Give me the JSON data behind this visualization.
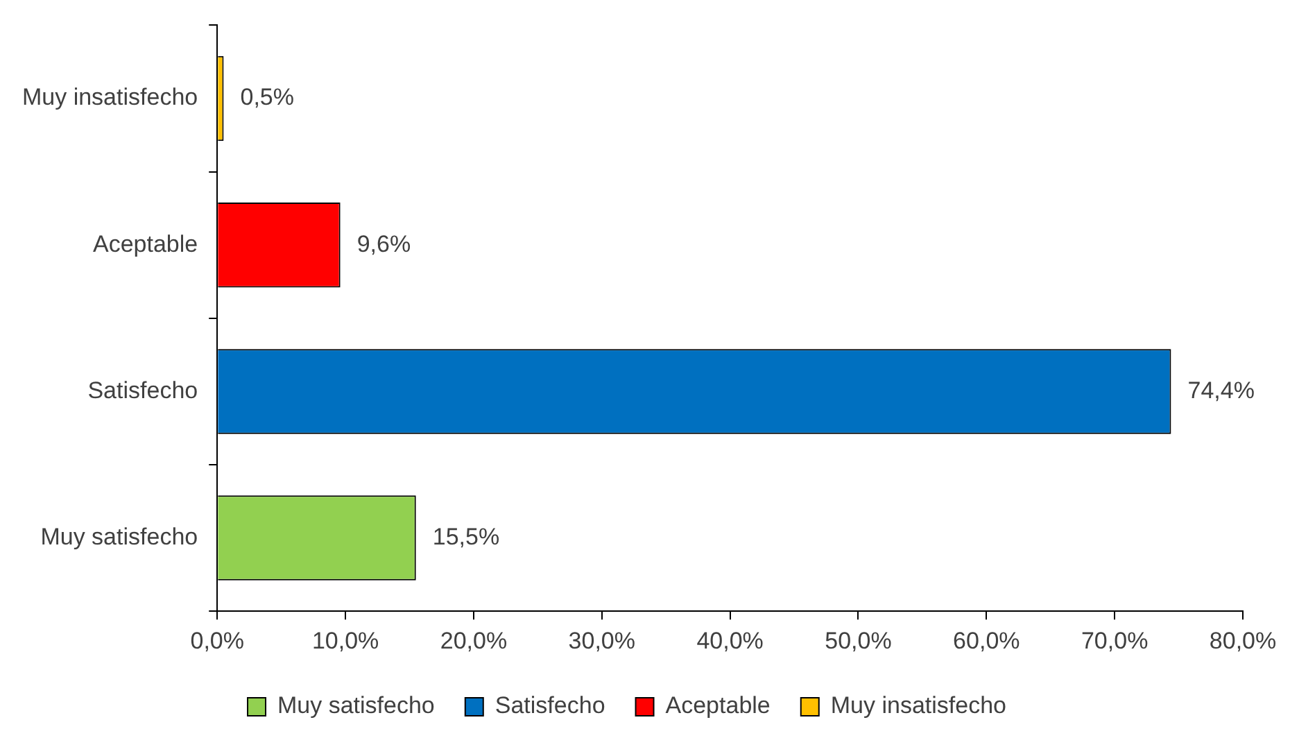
{
  "chart_data": {
    "type": "bar",
    "orientation": "horizontal",
    "categories": [
      "Muy insatisfecho",
      "Aceptable",
      "Satisfecho",
      "Muy satisfecho"
    ],
    "series": [
      {
        "name": "Muy satisfecho",
        "color": "#92d050",
        "values": [
          null,
          null,
          null,
          15.5
        ],
        "value_labels": [
          null,
          null,
          null,
          "15,5%"
        ]
      },
      {
        "name": "Satisfecho",
        "color": "#0070c0",
        "values": [
          null,
          null,
          74.4,
          null
        ],
        "value_labels": [
          null,
          null,
          "74,4%",
          null
        ]
      },
      {
        "name": "Aceptable",
        "color": "#ff0000",
        "values": [
          null,
          9.6,
          null,
          null
        ],
        "value_labels": [
          null,
          "9,6%",
          null,
          null
        ]
      },
      {
        "name": "Muy insatisfecho",
        "color": "#ffc000",
        "values": [
          0.5,
          null,
          null,
          null
        ],
        "value_labels": [
          "0,5%",
          null,
          null,
          null
        ]
      }
    ],
    "xlim": [
      0,
      80
    ],
    "xticks": [
      {
        "value": 0,
        "label": "0,0%"
      },
      {
        "value": 10,
        "label": "10,0%"
      },
      {
        "value": 20,
        "label": "20,0%"
      },
      {
        "value": 30,
        "label": "30,0%"
      },
      {
        "value": 40,
        "label": "40,0%"
      },
      {
        "value": 50,
        "label": "50,0%"
      },
      {
        "value": 60,
        "label": "60,0%"
      },
      {
        "value": 70,
        "label": "70,0%"
      },
      {
        "value": 80,
        "label": "80,0%"
      }
    ],
    "grid": false,
    "legend": "bottom"
  }
}
